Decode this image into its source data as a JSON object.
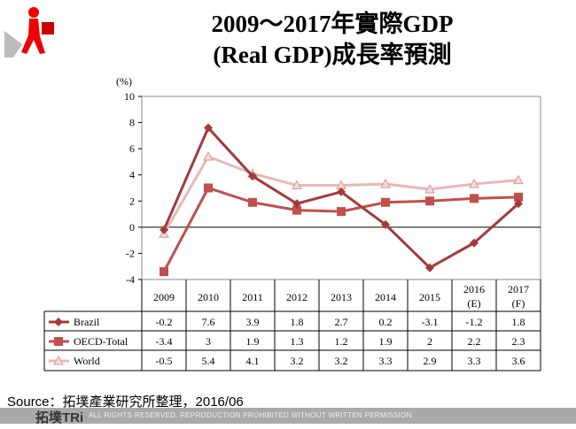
{
  "title_line1": "2009～2017年實際GDP",
  "title_line2": "(Real GDP)成長率預測",
  "source": "Source：拓墣產業研究所整理，2016/06",
  "footer": {
    "logo": "拓墣TRi",
    "rights": "ALL RIGHTS RESERVED. REPRODUCTION PROHIBITED WITHOUT WRITTEN PERMISSION."
  },
  "chart_data": {
    "type": "line",
    "ylabel": "(%)",
    "ylim": [
      -4,
      10
    ],
    "yticks": [
      -4,
      -2,
      0,
      2,
      4,
      6,
      8,
      10
    ],
    "categories": [
      [
        "2009"
      ],
      [
        "2010"
      ],
      [
        "2011"
      ],
      [
        "2012"
      ],
      [
        "2013"
      ],
      [
        "2014"
      ],
      [
        "2015"
      ],
      [
        "2016",
        "(E)"
      ],
      [
        "2017",
        "(F)"
      ]
    ],
    "series": [
      {
        "name": "Brazil",
        "color": "#a33b3a",
        "marker": "diamond",
        "values": [
          -0.2,
          7.6,
          3.9,
          1.8,
          2.7,
          0.2,
          -3.1,
          -1.2,
          1.8
        ]
      },
      {
        "name": "OECD-Total",
        "color": "#c0504d",
        "marker": "square",
        "values": [
          -3.4,
          3,
          1.9,
          1.3,
          1.2,
          1.9,
          2,
          2.2,
          2.3
        ]
      },
      {
        "name": "World",
        "color": "#e6b9b8",
        "marker": "triangle",
        "values": [
          -0.5,
          5.4,
          4.1,
          3.2,
          3.2,
          3.3,
          2.9,
          3.3,
          3.6
        ]
      }
    ],
    "grid": false,
    "legend": "data-table"
  }
}
